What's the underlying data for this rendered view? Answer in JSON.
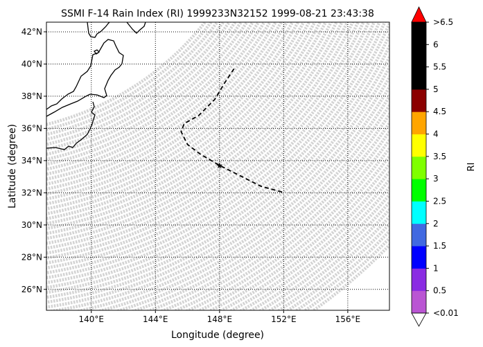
{
  "chart_data": {
    "type": "map",
    "title": "SSMI F-14 Rain Index (RI) 1999233N32152 1999-08-21 23:43:38",
    "xlabel": "Longitude (degree)",
    "ylabel": "Latitude (degree)",
    "xlim": [
      137.2,
      158.6
    ],
    "ylim": [
      24.7,
      42.6
    ],
    "x_ticks": [
      140,
      144,
      148,
      152,
      156
    ],
    "x_tick_labels": [
      "140°E",
      "144°E",
      "148°E",
      "152°E",
      "156°E"
    ],
    "y_ticks": [
      26,
      28,
      30,
      32,
      34,
      36,
      38,
      40,
      42
    ],
    "y_tick_labels": [
      "26°N",
      "28°N",
      "30°N",
      "32°N",
      "34°N",
      "36°N",
      "38°N",
      "40°N",
      "42°N"
    ],
    "grid": true,
    "colorbar": {
      "label": "RI",
      "tick_labels": [
        "<0.01",
        "0.5",
        "1",
        "1.5",
        "2",
        "2.5",
        "3",
        "3.5",
        "4",
        "4.5",
        "5",
        "5.5",
        "6",
        ">6.5"
      ],
      "colors": [
        "#ba55d3",
        "#8a2be2",
        "#0000ff",
        "#4169e1",
        "#00ffff",
        "#00ff00",
        "#7fff00",
        "#ffff00",
        "#ffa500",
        "#8b0000",
        "#000000",
        "#000000",
        "#000000"
      ],
      "extend_max_color": "#ff0000",
      "extend_min_color": "#ffffff"
    },
    "track": [
      {
        "lon": 151.9,
        "lat": 32.05
      },
      {
        "lon": 150.6,
        "lat": 32.4
      },
      {
        "lon": 149.4,
        "lat": 33.0
      },
      {
        "lon": 148.0,
        "lat": 33.7
      },
      {
        "lon": 146.8,
        "lat": 34.4
      },
      {
        "lon": 146.0,
        "lat": 35.0
      },
      {
        "lon": 145.6,
        "lat": 35.8
      },
      {
        "lon": 145.8,
        "lat": 36.3
      },
      {
        "lon": 146.7,
        "lat": 36.8
      },
      {
        "lon": 147.7,
        "lat": 37.8
      },
      {
        "lon": 148.3,
        "lat": 38.8
      },
      {
        "lon": 148.9,
        "lat": 39.7
      }
    ],
    "storm_position": {
      "lon": 148.0,
      "lat": 33.7
    },
    "swath_color": "#d3d3d3",
    "track_color": "#000000",
    "marker_color": "#ff0000"
  }
}
